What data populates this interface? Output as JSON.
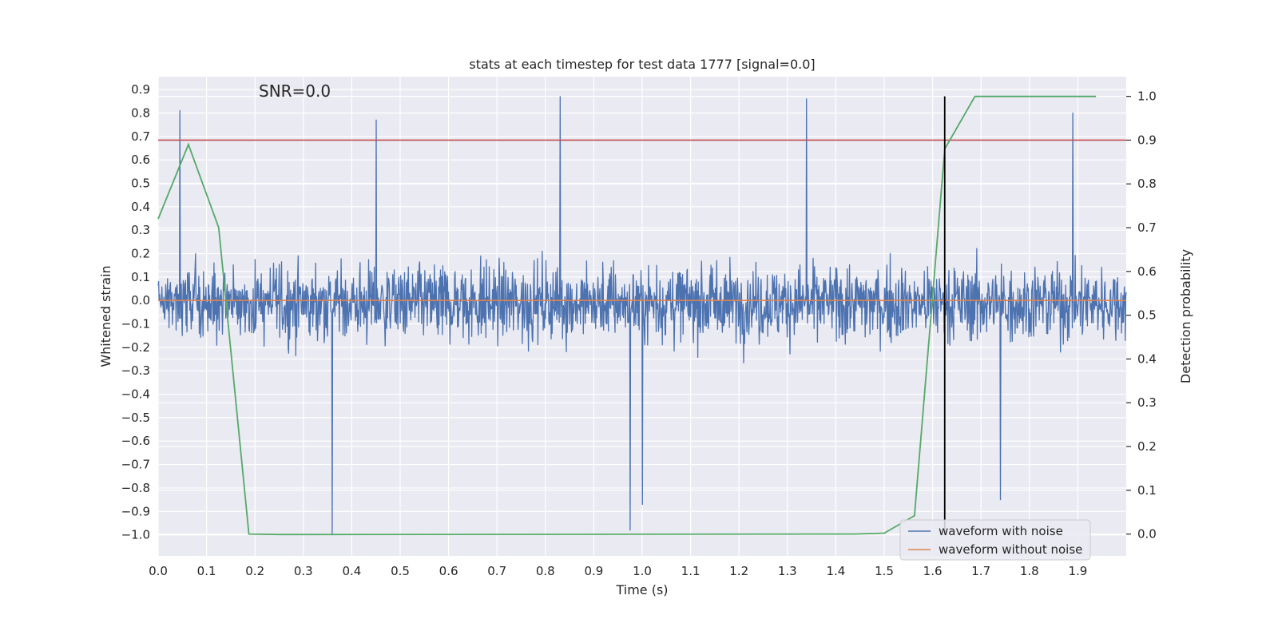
{
  "chart_data": {
    "type": "line",
    "title": "stats at each timestep for test data 1777 [signal=0.0]",
    "annotation": "SNR=0.0",
    "xlabel": "Time (s)",
    "ylabel": "Whitened strain",
    "y2label": "Detection probability",
    "xlim": [
      0.0,
      2.0
    ],
    "ylim": [
      -1.09,
      0.955
    ],
    "y2lim": [
      -0.05,
      1.045
    ],
    "grid": true,
    "legend_position": "lower-right",
    "x_ticks": [
      "0.0",
      "0.1",
      "0.2",
      "0.3",
      "0.4",
      "0.5",
      "0.6",
      "0.7",
      "0.8",
      "0.9",
      "1.0",
      "1.1",
      "1.2",
      "1.3",
      "1.4",
      "1.5",
      "1.6",
      "1.7",
      "1.8",
      "1.9"
    ],
    "y_ticks": [
      "0.9",
      "0.8",
      "0.7",
      "0.6",
      "0.5",
      "0.4",
      "0.3",
      "0.2",
      "0.1",
      "0.0",
      "−0.1",
      "−0.2",
      "−0.3",
      "−0.4",
      "−0.5",
      "−0.6",
      "−0.7",
      "−0.8",
      "−0.9",
      "−1.0"
    ],
    "y2_ticks": [
      "1.0",
      "0.9",
      "0.8",
      "0.7",
      "0.6",
      "0.5",
      "0.4",
      "0.3",
      "0.2",
      "0.1",
      "0.0"
    ],
    "series": [
      {
        "name": "waveform with noise",
        "color": "#4c72b0",
        "description": "dense noisy strain samples spanning 0.0–2.0 s, values approx −1.0 to 0.87",
        "samples": 2048,
        "x_range": [
          0.0,
          2.0
        ],
        "value_range": [
          -1.0,
          0.87
        ],
        "peaks": [
          {
            "x": 0.045,
            "y": 0.81
          },
          {
            "x": 0.45,
            "y": 0.77
          },
          {
            "x": 0.83,
            "y": 0.87
          },
          {
            "x": 1.34,
            "y": 0.86
          },
          {
            "x": 1.89,
            "y": 0.8
          },
          {
            "x": 0.36,
            "y": -1.0
          },
          {
            "x": 0.975,
            "y": -0.98
          },
          {
            "x": 1.0,
            "y": -0.87
          },
          {
            "x": 1.74,
            "y": -0.85
          }
        ]
      },
      {
        "name": "waveform without noise",
        "color": "#dd8452",
        "x": [
          0.0,
          2.0
        ],
        "y": [
          0.0,
          0.0
        ]
      }
    ],
    "probability_line": {
      "color": "#55a868",
      "x": [
        0.0,
        0.0625,
        0.125,
        0.1875,
        0.25,
        0.3125,
        1.4375,
        1.5,
        1.5625,
        1.625,
        1.6875,
        1.9375
      ],
      "y": [
        0.72,
        0.89,
        0.7,
        0.0,
        -0.001,
        -0.001,
        0.0,
        0.002,
        0.042,
        0.88,
        1.0,
        1.0
      ]
    },
    "threshold_line": {
      "color": "#c44e52",
      "y2": 0.9
    },
    "vertical_marker": {
      "color": "#000000",
      "x": 1.625
    }
  }
}
